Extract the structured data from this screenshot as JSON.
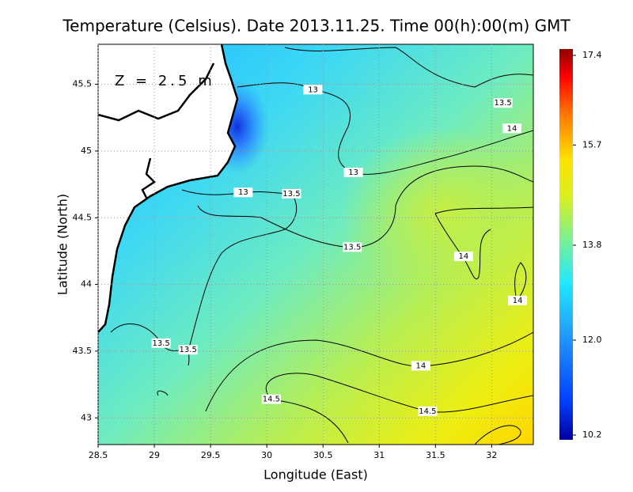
{
  "title": "Temperature (Celsius). Date 2013.11.25. Time 00(h):00(m) GMT",
  "annotation": "Z = 2.5 m",
  "x_axis": {
    "label": "Longitude (East)",
    "lim": [
      28.5,
      32.37
    ],
    "ticks": [
      28.5,
      29,
      29.5,
      30,
      30.5,
      31,
      31.5,
      32
    ]
  },
  "y_axis": {
    "label": "Latitude (North)",
    "lim": [
      42.8,
      45.8
    ],
    "ticks": [
      43,
      43.5,
      44,
      44.5,
      45,
      45.5
    ]
  },
  "grid": true,
  "colorbar": {
    "lim": [
      10.2,
      17.4
    ],
    "ticks": [
      10.2,
      {
        "value": 12,
        "label": "12.0"
      },
      13.8,
      15.7,
      17.4
    ]
  },
  "contour_labels": [
    {
      "value": 13,
      "lon": 30.41,
      "lat": 45.46
    },
    {
      "value": 13.5,
      "lon": 32.1,
      "lat": 45.36
    },
    {
      "value": 14,
      "lon": 32.18,
      "lat": 45.17
    },
    {
      "value": 13,
      "lon": 30.77,
      "lat": 44.84
    },
    {
      "value": 13,
      "lon": 29.79,
      "lat": 44.69
    },
    {
      "value": 13.5,
      "lon": 30.22,
      "lat": 44.68
    },
    {
      "value": 13.5,
      "lon": 30.76,
      "lat": 44.28
    },
    {
      "value": 14,
      "lon": 31.75,
      "lat": 44.21
    },
    {
      "value": 14,
      "lon": 32.23,
      "lat": 43.88
    },
    {
      "value": 13.5,
      "lon": 29.06,
      "lat": 43.56
    },
    {
      "value": 13.5,
      "lon": 29.3,
      "lat": 43.51
    },
    {
      "value": 14,
      "lon": 31.37,
      "lat": 43.39
    },
    {
      "value": 14.5,
      "lon": 30.04,
      "lat": 43.14
    },
    {
      "value": 14.5,
      "lon": 31.43,
      "lat": 43.05
    }
  ]
}
